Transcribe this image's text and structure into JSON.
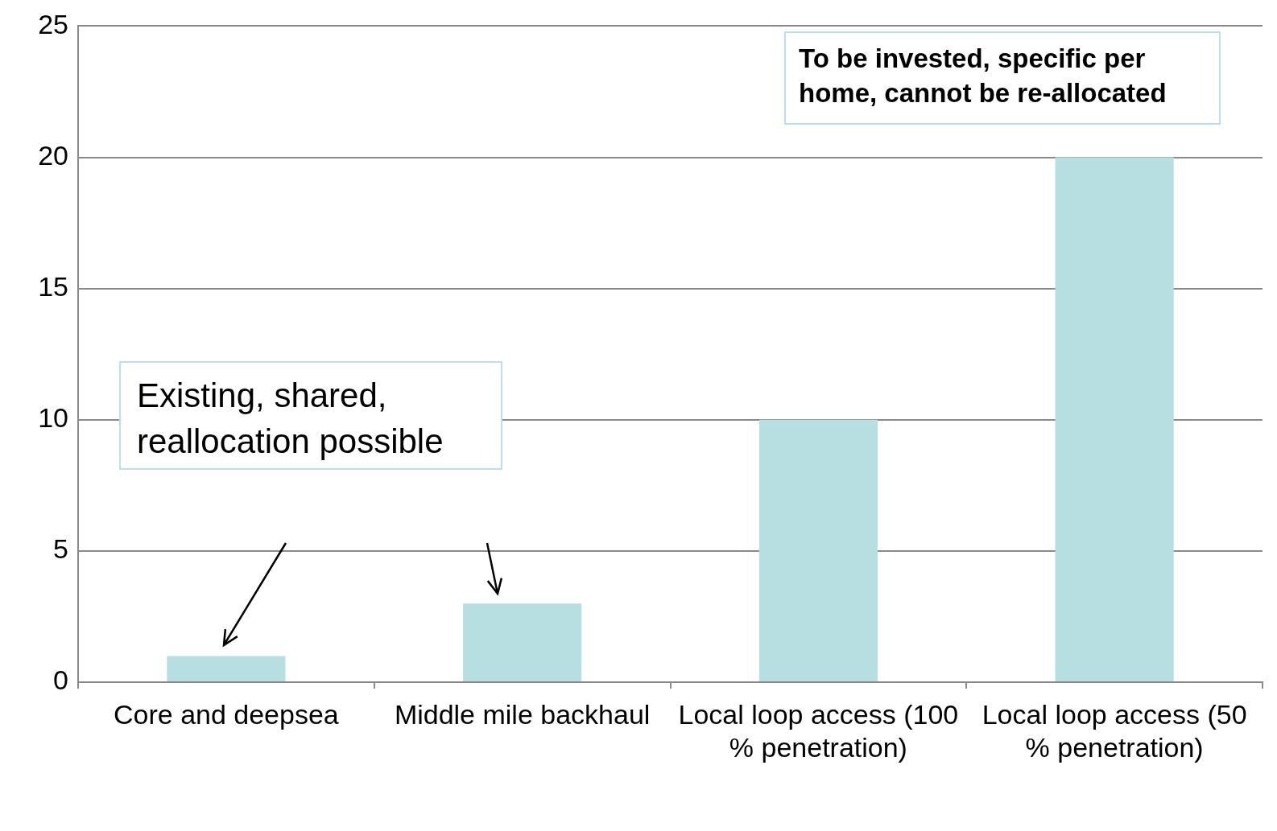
{
  "chart_data": {
    "type": "bar",
    "categories": [
      "Core and deepsea",
      "Middle mile backhaul",
      "Local loop access (100 % penetration)",
      "Local loop access (50 % penetration)"
    ],
    "values": [
      1,
      3,
      10,
      20
    ],
    "color": "#b7dfe1",
    "ylim": [
      0,
      25
    ],
    "yticks": [
      0,
      5,
      10,
      15,
      20,
      25
    ],
    "grid": "y",
    "annotations": [
      "Existing, shared, reallocation possible",
      "To be invested, specific per home, cannot be re-allocated"
    ]
  }
}
